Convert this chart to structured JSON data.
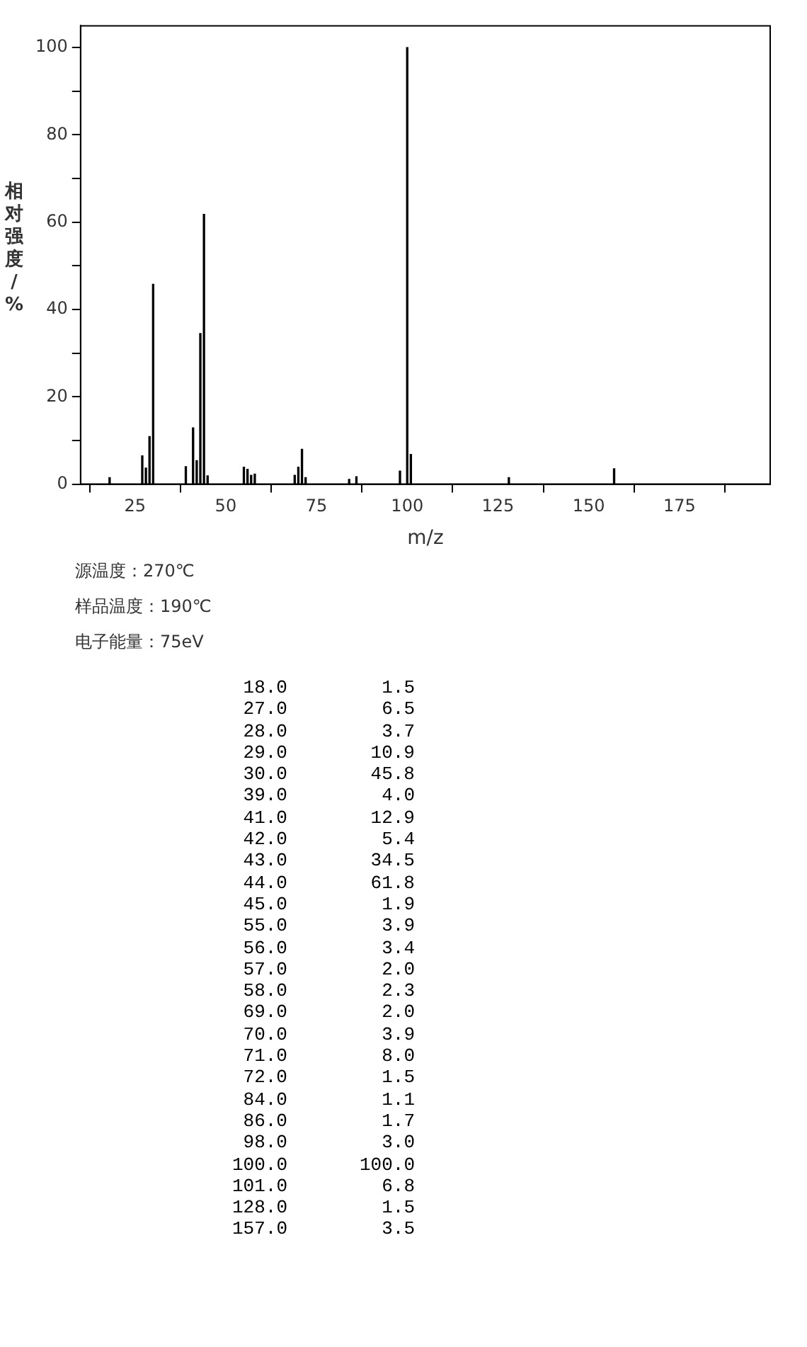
{
  "chart_data": [
    {
      "type": "bar",
      "xlabel": "m/z",
      "ylabel": "相对强度/%",
      "x": [
        18,
        27,
        28,
        29,
        30,
        39,
        41,
        42,
        43,
        44,
        45,
        55,
        56,
        57,
        58,
        69,
        70,
        71,
        72,
        84,
        86,
        98,
        100,
        101,
        128,
        157
      ],
      "values": [
        1.5,
        6.5,
        3.7,
        10.9,
        45.8,
        4.0,
        12.9,
        5.4,
        34.5,
        61.8,
        1.9,
        3.9,
        3.4,
        2.0,
        2.3,
        2.0,
        3.9,
        8.0,
        1.5,
        1.1,
        1.7,
        3.0,
        100.0,
        6.8,
        1.5,
        3.5
      ],
      "color": "#000000",
      "xlim": [
        10,
        200
      ],
      "xticks": [
        25,
        50,
        75,
        100,
        125,
        150,
        175
      ],
      "ylim": [
        0,
        105
      ],
      "yticks": [
        0,
        {
          "value": 10,
          "label": null
        },
        20,
        {
          "value": 30,
          "label": null
        },
        40,
        {
          "value": 50,
          "label": null
        },
        60,
        {
          "value": 70,
          "label": null
        },
        80,
        {
          "value": 90,
          "label": null
        },
        100
      ],
      "grid": false,
      "legend": false,
      "annotations": [
        "源温度：270℃",
        "样品温度：190℃",
        "电子能量：75eV"
      ]
    },
    {
      "type": "other",
      "annotations": [
        "18.0",
        "1.5",
        "27.0",
        "6.5",
        "28.0",
        "3.7",
        "29.0",
        "10.9",
        "30.0",
        "45.8",
        "39.0",
        "4.0",
        "41.0",
        "12.9",
        "42.0",
        "5.4",
        "43.0",
        "34.5",
        "44.0",
        "61.8",
        "45.0",
        "1.9",
        "55.0",
        "3.9",
        "56.0",
        "3.4",
        "57.0",
        "2.0",
        "58.0",
        "2.3",
        "69.0",
        "2.0",
        "70.0",
        "3.9",
        "71.0",
        "8.0",
        "72.0",
        "1.5",
        "84.0",
        "1.1",
        "86.0",
        "1.7",
        "98.0",
        "3.0",
        "100.0",
        "100.0",
        "101.0",
        "6.8",
        "128.0",
        "1.5",
        "157.0",
        "3.5"
      ]
    }
  ]
}
